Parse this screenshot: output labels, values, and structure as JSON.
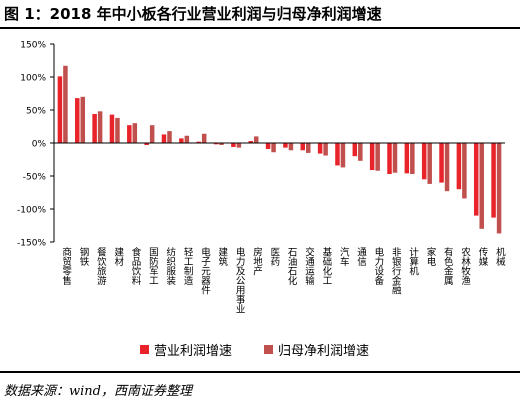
{
  "title": "图 1：2018 年中小板各行业营业利润与归母净利润增速",
  "source": "数据来源：wind，西南证券整理",
  "colors": {
    "series1": "#e8232a",
    "series2": "#c0504d"
  },
  "chart_data": {
    "type": "bar",
    "ylim": [
      -150,
      150
    ],
    "yticks": [
      -150,
      -100,
      -50,
      0,
      50,
      100,
      150
    ],
    "ytick_labels": [
      "-150%",
      "-100%",
      "-50%",
      "0%",
      "50%",
      "100%",
      "150%"
    ],
    "categories": [
      "商贸零售",
      "钢铁",
      "餐饮旅游",
      "建材",
      "食品饮料",
      "国防军工",
      "纺织服装",
      "轻工制造",
      "电子元器件",
      "建筑",
      "电力及公用事业",
      "房地产",
      "医药",
      "石油石化",
      "交通运输",
      "基础化工",
      "汽车",
      "通信",
      "电力设备",
      "非银行金融",
      "计算机",
      "家电",
      "有色金属",
      "农林牧渔",
      "传媒",
      "机械"
    ],
    "series": [
      {
        "name": "营业利润增速",
        "values": [
          101,
          68,
          44,
          43,
          27,
          -3,
          13,
          7,
          2,
          -2,
          -6,
          3,
          -9,
          -7,
          -11,
          -16,
          -34,
          -20,
          -41,
          -47,
          -46,
          -55,
          -60,
          -70,
          -110,
          -113
        ]
      },
      {
        "name": "归母净利润增速",
        "values": [
          117,
          70,
          48,
          38,
          30,
          27,
          18,
          11,
          14,
          -3,
          -7,
          10,
          -14,
          -11,
          -15,
          -19,
          -37,
          -27,
          -42,
          -45,
          -47,
          -62,
          -73,
          -84,
          -130,
          -137
        ]
      }
    ]
  }
}
